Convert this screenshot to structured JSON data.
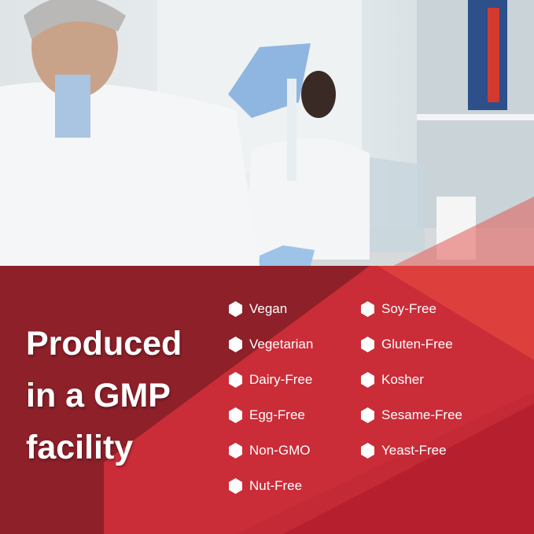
{
  "headline": {
    "lines": [
      "Produced",
      "in a GMP",
      "facility"
    ]
  },
  "features": {
    "left": [
      "Vegan",
      "Vegetarian",
      "Dairy-Free",
      "Egg-Free",
      "Non-GMO",
      "Nut-Free"
    ],
    "right": [
      "Soy-Free",
      "Gluten-Free",
      "Kosher",
      "Sesame-Free",
      "Yeast-Free"
    ]
  },
  "colors": {
    "panel_dark": "#8d2029",
    "panel_mid": "#c42a36",
    "panel_light": "#e5473f",
    "text": "#ffffff"
  },
  "icons": {
    "bullet": "hexagon-icon"
  }
}
